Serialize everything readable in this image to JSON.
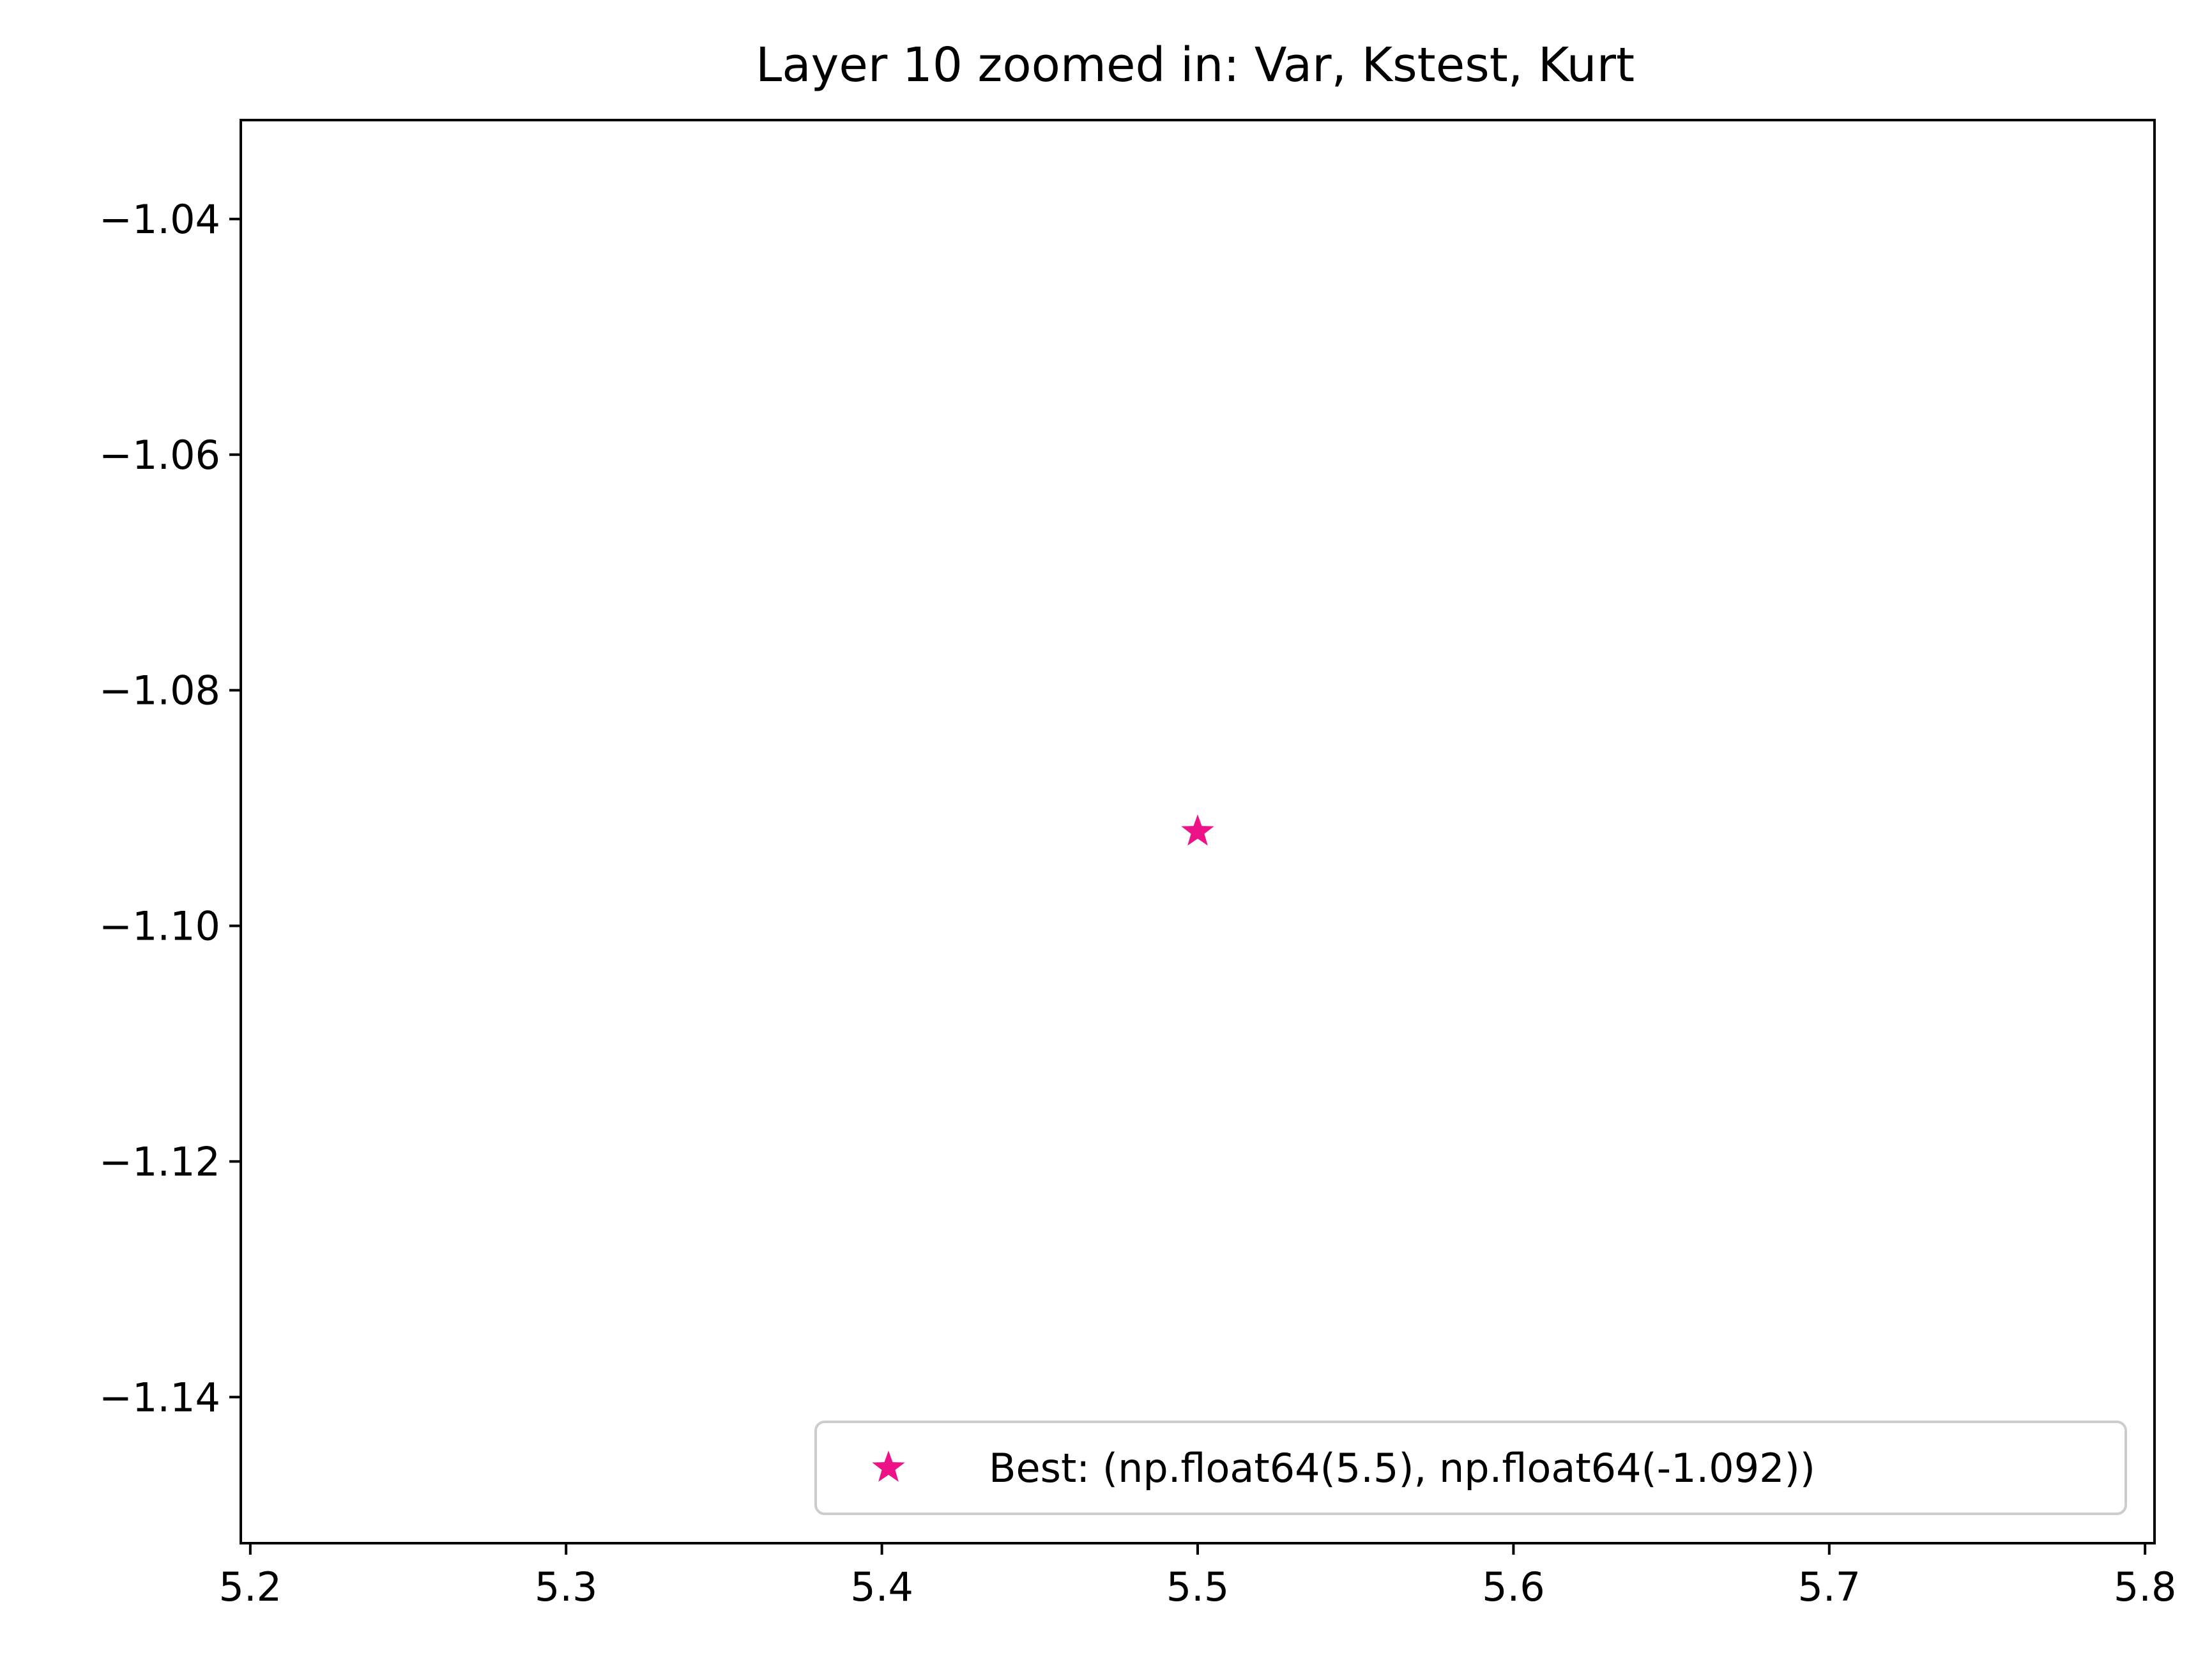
{
  "chart_data": {
    "type": "scatter",
    "title": "Layer 10 zoomed in: Var, Kstest, Kurt",
    "xlabel": "",
    "ylabel": "",
    "xlim": [
      5.197,
      5.803
    ],
    "ylim": [
      -1.1524,
      -1.0316
    ],
    "grid": false,
    "legend_position": "lower-right",
    "x_ticks": [
      5.2,
      5.3,
      5.4,
      5.5,
      5.6,
      5.7,
      5.8
    ],
    "x_tick_labels": [
      "5.2",
      "5.3",
      "5.4",
      "5.5",
      "5.6",
      "5.7",
      "5.8"
    ],
    "y_ticks": [
      -1.04,
      -1.06,
      -1.08,
      -1.1,
      -1.12,
      -1.14
    ],
    "y_tick_labels": [
      "−1.04",
      "−1.06",
      "−1.08",
      "−1.10",
      "−1.12",
      "−1.14"
    ],
    "series": [
      {
        "name": "Best: (np.float64(5.5), np.float64(-1.092))",
        "marker": "star",
        "color": "#ee1289",
        "points": [
          {
            "x": 5.5,
            "y": -1.092
          }
        ]
      }
    ]
  }
}
